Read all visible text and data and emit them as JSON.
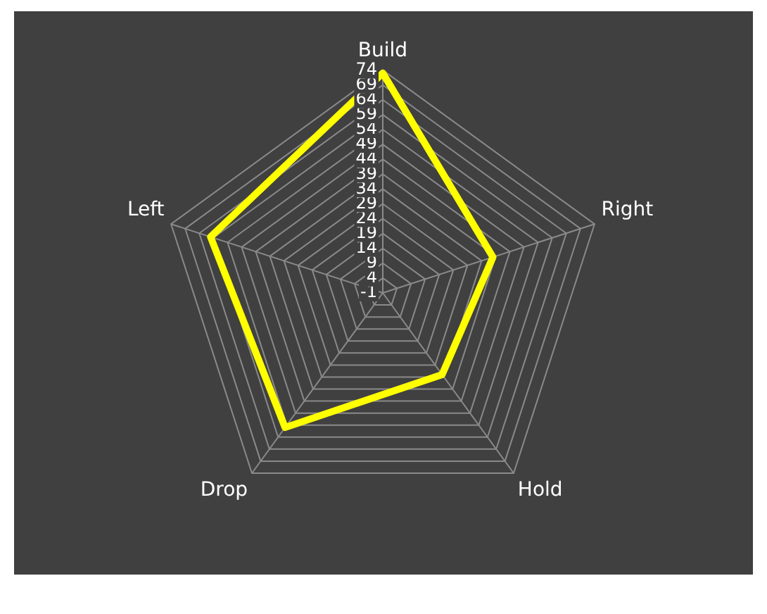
{
  "chart_data": {
    "type": "radar",
    "categories": [
      "Build",
      "Right",
      "Hold",
      "Drop",
      "Left"
    ],
    "series": [
      {
        "color": "#ffff00",
        "values": [
          73,
          38,
          33,
          55,
          60
        ]
      }
    ],
    "ylim": [
      -1,
      74
    ],
    "yticks": [
      -1,
      4,
      9,
      14,
      19,
      24,
      29,
      34,
      39,
      44,
      49,
      54,
      59,
      64,
      69,
      74
    ],
    "grid": true,
    "legend": false,
    "marker": "none"
  }
}
